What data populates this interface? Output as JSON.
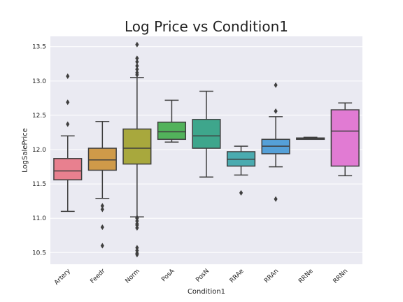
{
  "chart_data": {
    "type": "box",
    "title": "Log Price vs Condition1",
    "xlabel": "Condition1",
    "ylabel": "LogSalePrice",
    "ylim": [
      10.33,
      13.65
    ],
    "yticks": [
      10.5,
      11.0,
      11.5,
      12.0,
      12.5,
      13.0,
      13.5
    ],
    "ytick_labels": [
      "10.5",
      "11.0",
      "11.5",
      "12.0",
      "12.5",
      "13.0",
      "13.5"
    ],
    "grid": true,
    "background": "#eaeaf2",
    "categories": [
      "Artery",
      "Feedr",
      "Norm",
      "PosA",
      "PosN",
      "RRAe",
      "RRAn",
      "RRNe",
      "RRNn"
    ],
    "colors": [
      "#e8808f",
      "#cf9a49",
      "#a8a83d",
      "#52b25b",
      "#3ea68c",
      "#4aabb0",
      "#55a0d8",
      "#a994e8",
      "#e17bd3"
    ],
    "boxes": [
      {
        "whislo": 11.1,
        "q1": 11.56,
        "med": 11.69,
        "q3": 11.87,
        "whishi": 12.2,
        "fliers": [
          13.07,
          12.69,
          12.37
        ]
      },
      {
        "whislo": 11.29,
        "q1": 11.7,
        "med": 11.85,
        "q3": 12.02,
        "whishi": 12.41,
        "fliers": [
          11.18,
          11.13,
          10.87,
          10.6
        ]
      },
      {
        "whislo": 11.02,
        "q1": 11.79,
        "med": 12.02,
        "q3": 12.3,
        "whishi": 13.05,
        "fliers": [
          13.53,
          13.33,
          13.28,
          13.22,
          13.17,
          13.12,
          13.09,
          11.01,
          11.0,
          10.96,
          10.92,
          10.9,
          10.86,
          10.57,
          10.53,
          10.49,
          10.47
        ]
      },
      {
        "whislo": 12.11,
        "q1": 12.15,
        "med": 12.26,
        "q3": 12.4,
        "whishi": 12.72,
        "fliers": []
      },
      {
        "whislo": 11.6,
        "q1": 12.02,
        "med": 12.2,
        "q3": 12.44,
        "whishi": 12.85,
        "fliers": []
      },
      {
        "whislo": 11.63,
        "q1": 11.76,
        "med": 11.86,
        "q3": 11.97,
        "whishi": 12.05,
        "fliers": [
          11.37
        ]
      },
      {
        "whislo": 11.75,
        "q1": 11.94,
        "med": 12.05,
        "q3": 12.15,
        "whishi": 12.48,
        "fliers": [
          12.94,
          12.56,
          11.28
        ]
      },
      {
        "whislo": 12.15,
        "q1": 12.15,
        "med": 12.16,
        "q3": 12.17,
        "whishi": 12.18,
        "fliers": []
      },
      {
        "whislo": 11.62,
        "q1": 11.76,
        "med": 12.27,
        "q3": 12.58,
        "whishi": 12.68,
        "fliers": []
      }
    ]
  }
}
